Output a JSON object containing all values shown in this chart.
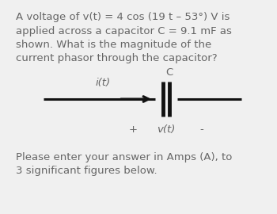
{
  "background_color": "#f0f0f0",
  "text_color": "#666666",
  "line_color": "#111111",
  "title_text": "A voltage of v(t) = 4 cos (19 t – 53°) V is\napplied across a capacitor C = 9.1 mF as\nshown. What is the magnitude of the\ncurrent phasor through the capacitor?",
  "footer_text": "Please enter your answer in Amps (A), to\n3 significant figures below.",
  "label_it": "i(t)",
  "label_C": "C",
  "label_vt": "v(t)",
  "label_plus": "+",
  "label_minus": "-",
  "title_fontsize": 9.5,
  "label_fontsize": 9.5,
  "footer_fontsize": 9.5
}
